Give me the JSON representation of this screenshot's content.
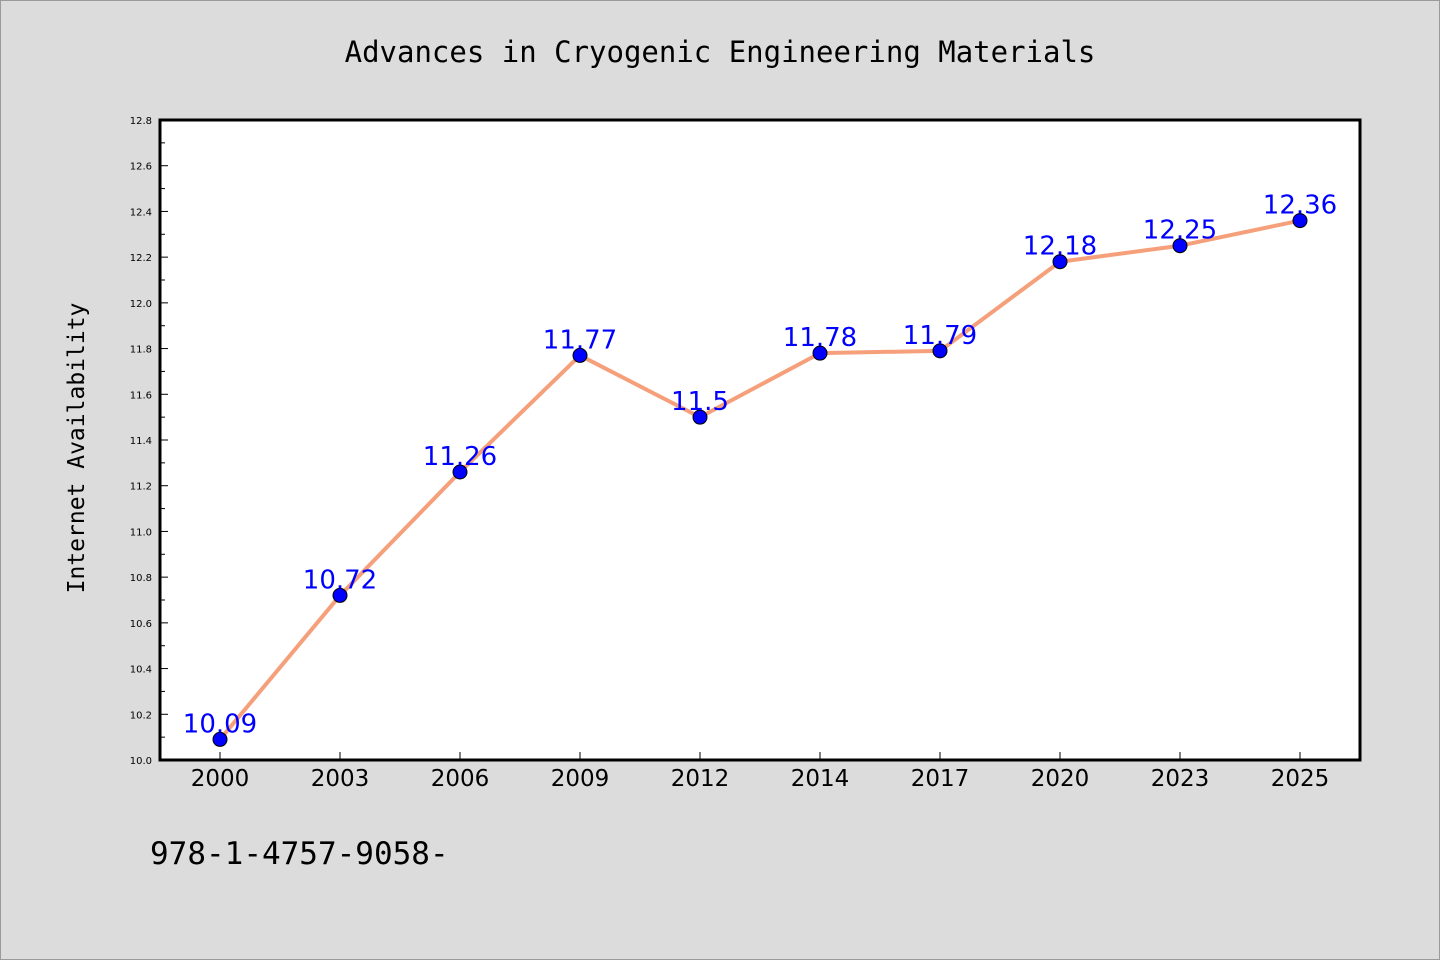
{
  "chart_data": {
    "type": "line",
    "title": "Advances in Cryogenic Engineering Materials",
    "xlabel": "",
    "ylabel": "Internet Availability",
    "x": [
      "2000",
      "2003",
      "2006",
      "2009",
      "2012",
      "2014",
      "2017",
      "2020",
      "2023",
      "2025"
    ],
    "series": [
      {
        "values": [
          10.09,
          10.72,
          11.26,
          11.77,
          11.5,
          11.78,
          11.79,
          12.18,
          12.25,
          12.36
        ],
        "line_color": "#f5a07a",
        "marker_color": "#0000ff",
        "labels": [
          "10.09",
          "10.72",
          "11.26",
          "11.77",
          "11.5",
          "11.78",
          "11.79",
          "12.18",
          "12.25",
          "12.36"
        ]
      }
    ],
    "ylim": [
      10.0,
      12.8
    ],
    "yticks": [
      "10.0",
      "10.2",
      "10.4",
      "10.6",
      "10.8",
      "11.0",
      "11.2",
      "11.4",
      "11.6",
      "11.8",
      "12.0",
      "12.2",
      "12.4",
      "12.6",
      "12.8"
    ],
    "grid": false,
    "legend": "none",
    "label_color": "#0000ff"
  },
  "footer": {
    "text": "978-1-4757-9058-"
  },
  "colors": {
    "background": "#dcdcdc",
    "plot_background": "#ffffff"
  }
}
